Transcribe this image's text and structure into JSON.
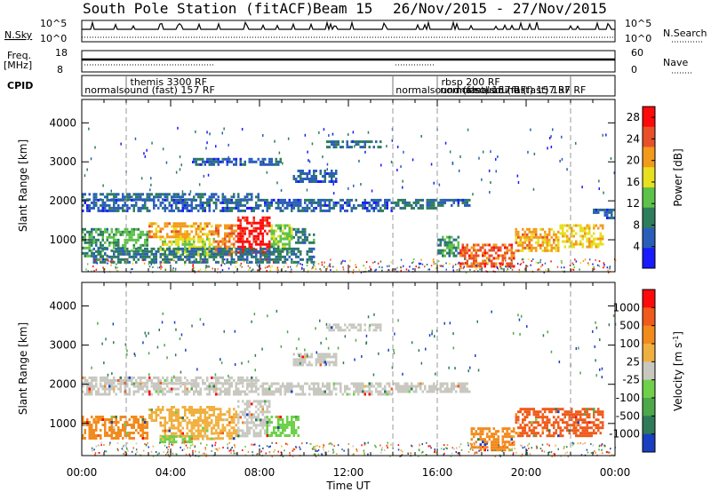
{
  "header": {
    "station": "South Pole Station (fitACF)",
    "beam": "Beam 15",
    "date_range": "26/Nov/2015 - 27/Nov/2015"
  },
  "small_panels": {
    "nsky_label": "N.Sky",
    "nsky_ticks": [
      "10^5",
      "10^0"
    ],
    "nsearch_label": "N.Search",
    "nsearch_ticks": [
      "10^5",
      "10^0"
    ],
    "freq_label_1": "Freq.",
    "freq_label_2": "[MHz]",
    "freq_ticks": [
      "18",
      "8"
    ],
    "nave_label": "Nave",
    "nave_ticks": [
      "60",
      "0"
    ],
    "cpid_label": "CPID",
    "cpid_entries": [
      {
        "text": "themis 3300 RF",
        "row": 0,
        "x_hour": 2.1
      },
      {
        "text": "normalsound (fast) 157 RF",
        "row": 1,
        "x_hour": 0.05
      },
      {
        "text": "rbsp 200 RF",
        "row": 0,
        "x_hour": 16.1
      },
      {
        "text": "normalsound (fast) 157 RF",
        "row": 1,
        "x_hour": 14.05
      },
      {
        "text": "normalsound (fast) 157 RF",
        "row": 1,
        "x_hour": 16.05
      },
      {
        "text": "normalsound (fast) 157 RF",
        "row": 1,
        "x_hour": 16.75
      }
    ]
  },
  "chart_data": [
    {
      "type": "heatmap",
      "name": "power",
      "xlabel": "Time UT",
      "ylabel": "Slant Range [km]",
      "xlim": [
        0,
        24
      ],
      "ylim": [
        180,
        4600
      ],
      "x_ticks": [
        "00:00",
        "04:00",
        "08:00",
        "12:00",
        "16:00",
        "20:00",
        "00:00"
      ],
      "y_ticks": [
        1000,
        2000,
        3000,
        4000
      ],
      "colorbar_label": "Power [dB]",
      "colorbar_ticks": [
        4,
        8,
        12,
        16,
        20,
        24,
        28
      ],
      "colorbar_range": [
        0,
        30
      ],
      "colorbar_colors": [
        "#1a1aff",
        "#2a5fb8",
        "#2e7d5b",
        "#5ec24a",
        "#e6e020",
        "#f39a1c",
        "#e8502a",
        "#ff0a0a"
      ],
      "dashed_markers_hours": [
        2.0,
        14.0,
        16.0,
        22.0
      ],
      "regions": [
        {
          "t0": 0.0,
          "t1": 14.0,
          "r0": 1750,
          "r1": 2050,
          "v": 6
        },
        {
          "t0": 0.0,
          "t1": 8.0,
          "r0": 2050,
          "r1": 2200,
          "v": 7
        },
        {
          "t0": 14.0,
          "t1": 16.0,
          "r0": 1800,
          "r1": 2050,
          "v": 8
        },
        {
          "t0": 16.0,
          "t1": 17.5,
          "r0": 1850,
          "r1": 2050,
          "v": 6
        },
        {
          "t0": 23.0,
          "t1": 24.0,
          "r0": 1550,
          "r1": 1800,
          "v": 6
        },
        {
          "t0": 0.0,
          "t1": 1.2,
          "r0": 600,
          "r1": 1300,
          "v": 10
        },
        {
          "t0": 1.2,
          "t1": 3.0,
          "r0": 700,
          "r1": 1300,
          "v": 12
        },
        {
          "t0": 3.0,
          "t1": 6.0,
          "r0": 1100,
          "r1": 1450,
          "v": 20
        },
        {
          "t0": 3.5,
          "t1": 6.0,
          "r0": 600,
          "r1": 1050,
          "v": 16
        },
        {
          "t0": 6.0,
          "t1": 7.0,
          "r0": 600,
          "r1": 1400,
          "v": 22
        },
        {
          "t0": 7.0,
          "t1": 8.5,
          "r0": 600,
          "r1": 1600,
          "v": 28
        },
        {
          "t0": 8.5,
          "t1": 9.5,
          "r0": 700,
          "r1": 1400,
          "v": 14
        },
        {
          "t0": 9.5,
          "t1": 10.5,
          "r0": 900,
          "r1": 1300,
          "v": 9
        },
        {
          "t0": 0.5,
          "t1": 10.5,
          "r0": 400,
          "r1": 800,
          "v": 8
        },
        {
          "t0": 17.0,
          "t1": 19.5,
          "r0": 300,
          "r1": 900,
          "v": 24
        },
        {
          "t0": 19.5,
          "t1": 21.5,
          "r0": 700,
          "r1": 1300,
          "v": 20
        },
        {
          "t0": 21.5,
          "t1": 23.5,
          "r0": 800,
          "r1": 1400,
          "v": 18
        },
        {
          "t0": 16.0,
          "t1": 17.0,
          "r0": 600,
          "r1": 1100,
          "v": 10
        },
        {
          "t0": 11.0,
          "t1": 13.5,
          "r0": 3350,
          "r1": 3550,
          "v": 7
        },
        {
          "t0": 5.0,
          "t1": 9.0,
          "r0": 2900,
          "r1": 3100,
          "v": 6
        },
        {
          "t0": 9.5,
          "t1": 11.5,
          "r0": 2500,
          "r1": 2800,
          "v": 6
        }
      ]
    },
    {
      "type": "heatmap",
      "name": "velocity",
      "xlabel": "Time UT",
      "ylabel": "Slant Range [km]",
      "xlim": [
        0,
        24
      ],
      "ylim": [
        180,
        4600
      ],
      "x_ticks": [
        "00:00",
        "04:00",
        "08:00",
        "12:00",
        "16:00",
        "20:00",
        "00:00"
      ],
      "y_ticks": [
        1000,
        2000,
        3000,
        4000
      ],
      "colorbar_label": "Velocity [m s^-1]",
      "colorbar_ticks": [
        "1000",
        "500",
        "100",
        "25",
        "-25",
        "-100",
        "-500",
        "-1000"
      ],
      "colorbar_colors": [
        "#1a3fc0",
        "#2f7a58",
        "#4da84a",
        "#6fd04a",
        "#c8c8c0",
        "#f0b040",
        "#f38a1c",
        "#f05a1a",
        "#ff0a0a"
      ],
      "dashed_markers_hours": [
        2.0,
        14.0,
        16.0,
        22.0
      ],
      "regions": [
        {
          "t0": 0.0,
          "t1": 14.0,
          "r0": 1750,
          "r1": 2050,
          "c": 4
        },
        {
          "t0": 0.0,
          "t1": 8.0,
          "r0": 2050,
          "r1": 2200,
          "c": 4
        },
        {
          "t0": 14.0,
          "t1": 17.5,
          "r0": 1800,
          "r1": 2050,
          "c": 4
        },
        {
          "t0": 0.0,
          "t1": 3.0,
          "r0": 600,
          "r1": 1200,
          "c": 6
        },
        {
          "t0": 3.0,
          "t1": 6.0,
          "r0": 1100,
          "r1": 1450,
          "c": 5
        },
        {
          "t0": 3.5,
          "t1": 6.0,
          "r0": 600,
          "r1": 1050,
          "c": 5
        },
        {
          "t0": 6.0,
          "t1": 7.0,
          "r0": 600,
          "r1": 1400,
          "c": 5
        },
        {
          "t0": 7.0,
          "t1": 8.5,
          "r0": 700,
          "r1": 1600,
          "c": 4
        },
        {
          "t0": 8.3,
          "t1": 9.8,
          "r0": 700,
          "r1": 1200,
          "c": 3
        },
        {
          "t0": 3.5,
          "t1": 5.0,
          "r0": 500,
          "r1": 700,
          "c": 3
        },
        {
          "t0": 17.5,
          "t1": 19.5,
          "r0": 300,
          "r1": 900,
          "c": 6
        },
        {
          "t0": 19.5,
          "t1": 23.5,
          "r0": 700,
          "r1": 1400,
          "c": 7
        },
        {
          "t0": 11.0,
          "t1": 13.5,
          "r0": 3350,
          "r1": 3550,
          "c": 4
        },
        {
          "t0": 9.5,
          "t1": 11.5,
          "r0": 2500,
          "r1": 2800,
          "c": 4
        }
      ]
    }
  ]
}
